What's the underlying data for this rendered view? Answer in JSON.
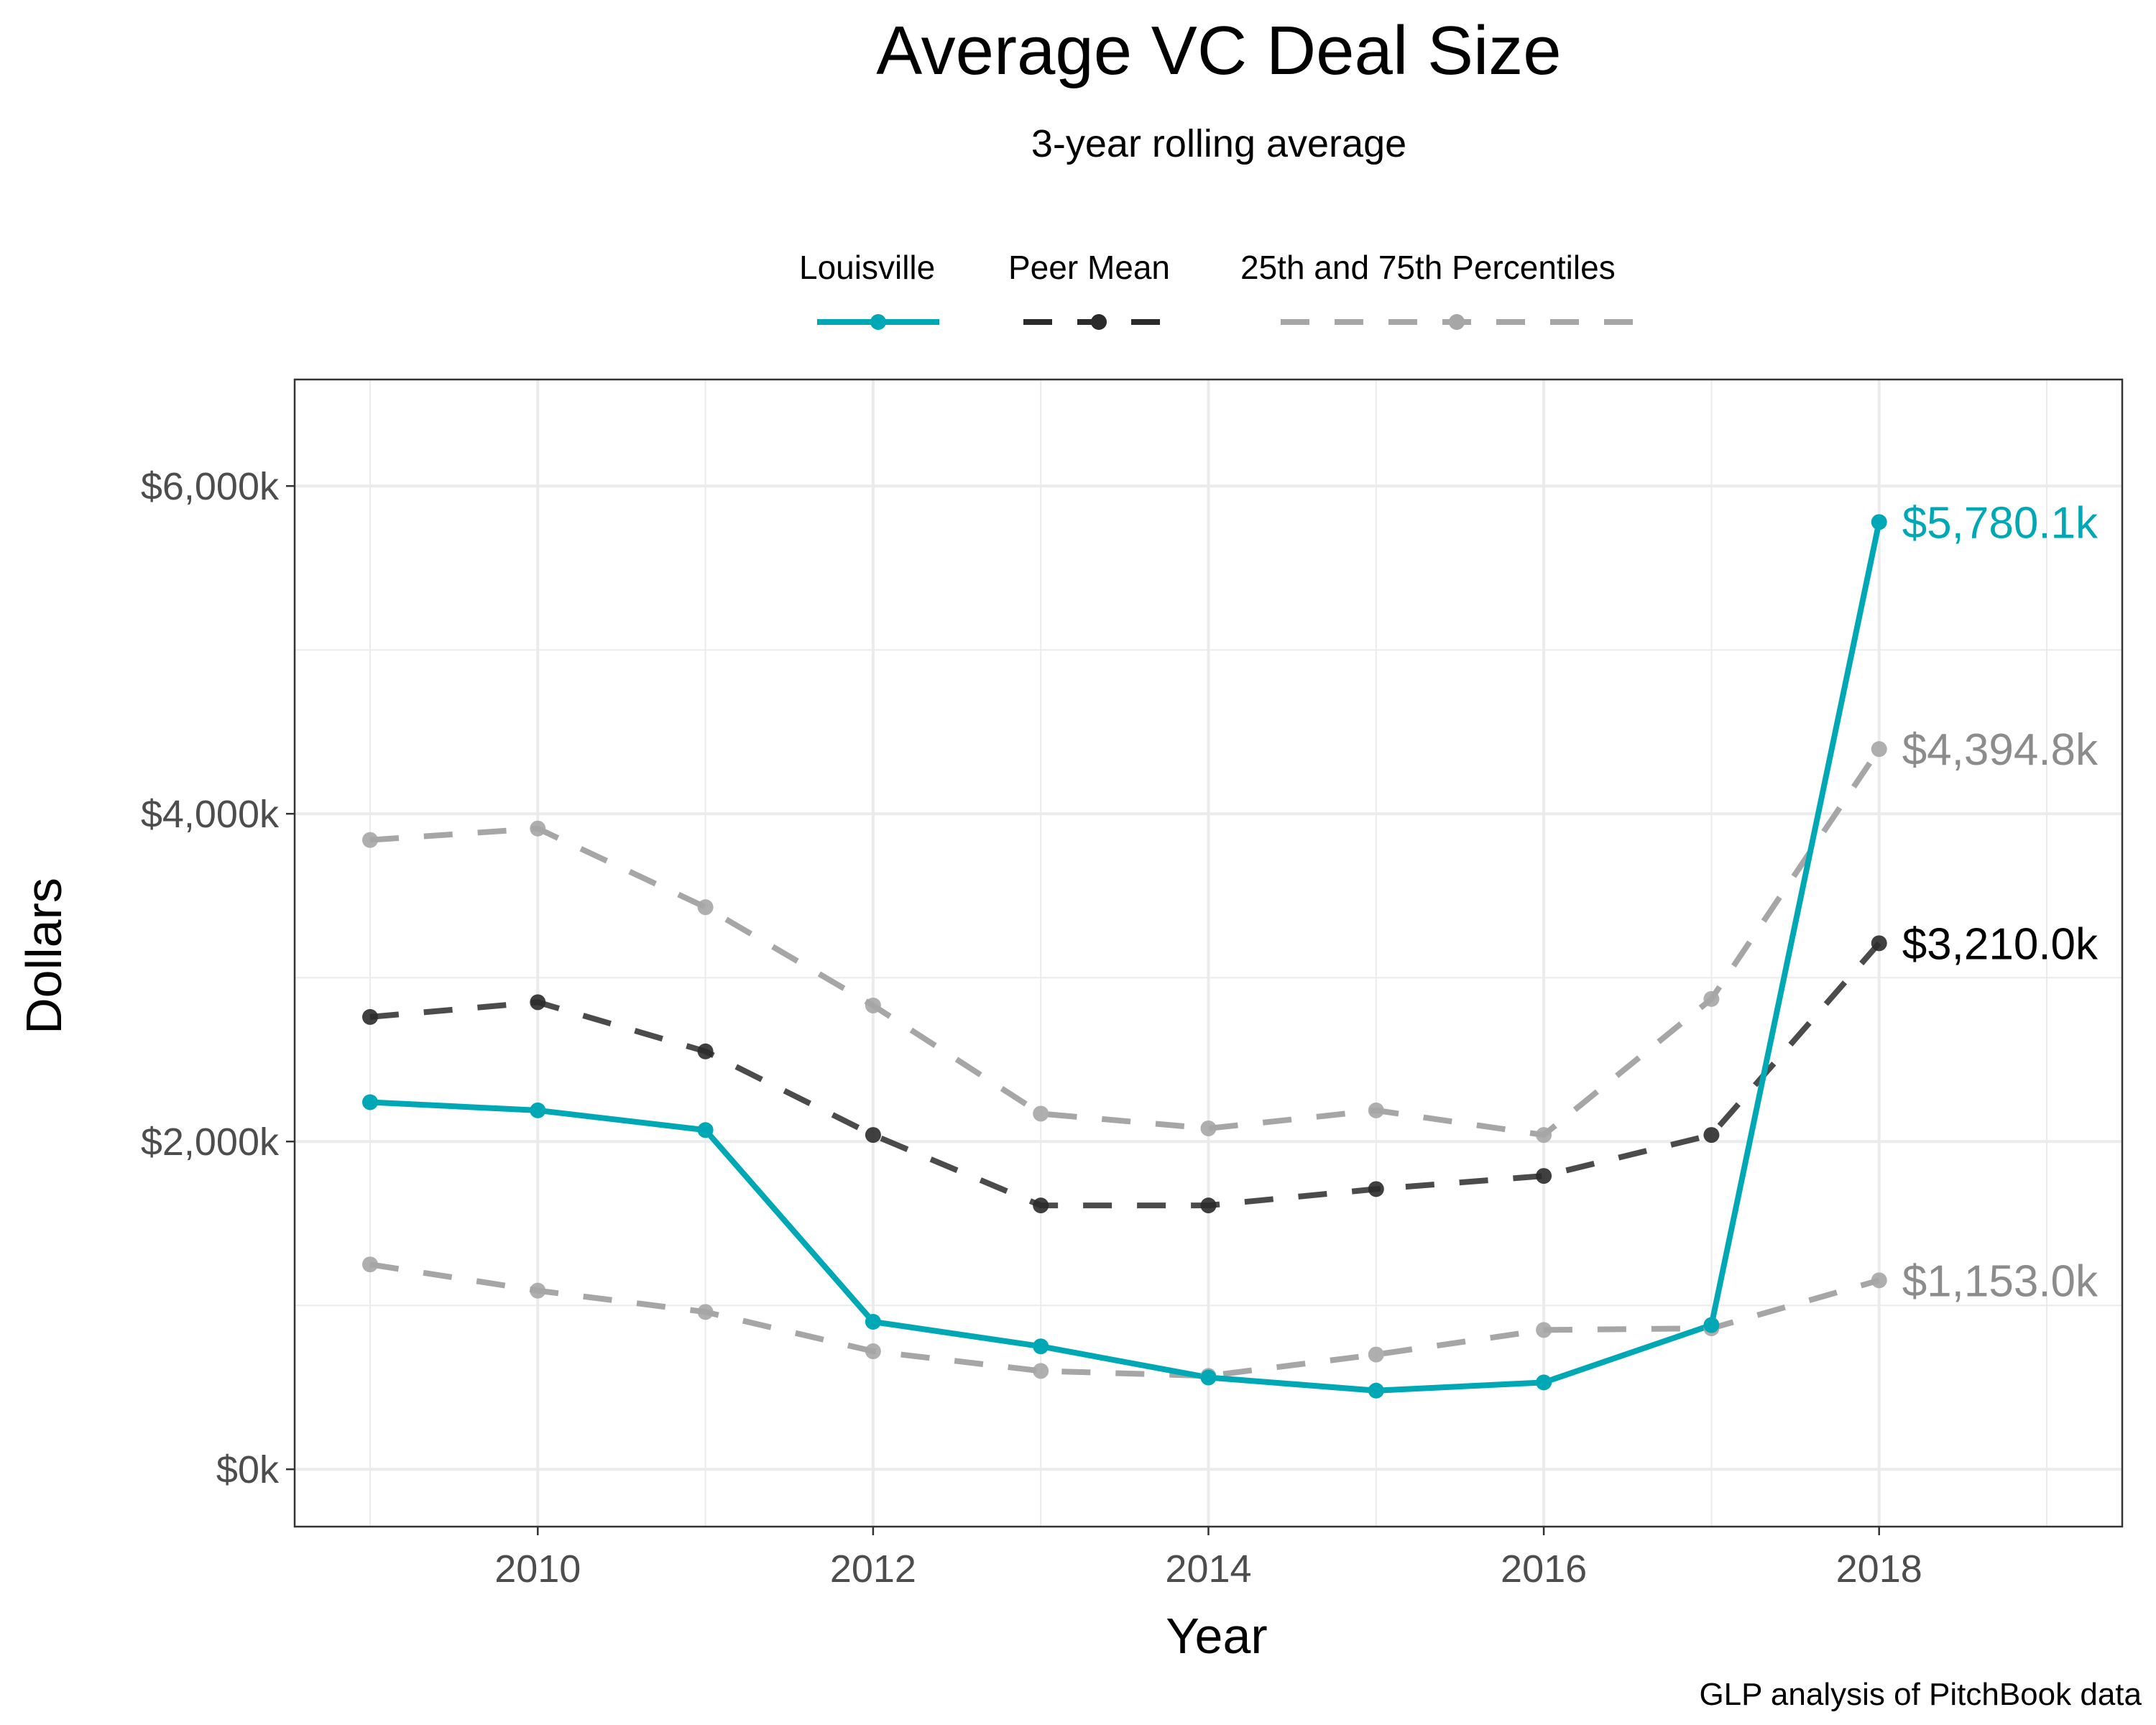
{
  "chart_data": {
    "type": "line",
    "title": "Average VC Deal Size",
    "subtitle": "3-year rolling average",
    "xlabel": "Year",
    "ylabel": "Dollars",
    "caption": "GLP analysis of PitchBook data",
    "x": [
      2009,
      2010,
      2011,
      2012,
      2013,
      2014,
      2015,
      2016,
      2017,
      2018
    ],
    "xlim": [
      2008.55,
      2019.45
    ],
    "ylim": [
      -350,
      6650
    ],
    "x_ticks": [
      2010,
      2012,
      2014,
      2016,
      2018
    ],
    "x_tick_labels": [
      "2010",
      "2012",
      "2014",
      "2016",
      "2018"
    ],
    "y_ticks": [
      0,
      2000,
      4000,
      6000
    ],
    "y_tick_labels": [
      "$0k",
      "$2,000k",
      "$4,000k",
      "$6,000k"
    ],
    "grid": true,
    "legend_position": "top",
    "legend": [
      "Louisville",
      "Peer Mean",
      "25th and 75th Percentiles"
    ],
    "series": [
      {
        "name": "Louisville",
        "color": "#00a8b5",
        "style": "solid",
        "values": [
          2240,
          2190,
          2070,
          900,
          750,
          560,
          480,
          530,
          880,
          5780.1
        ],
        "end_label": "$5,780.1k"
      },
      {
        "name": "Peer Mean",
        "color": "#2b2b2b",
        "style": "dashed",
        "values": [
          2760,
          2850,
          2550,
          2040,
          1610,
          1610,
          1710,
          1790,
          2040,
          3210.0
        ],
        "end_label": "$3,210.0k"
      },
      {
        "name": "25th Percentile",
        "color": "#a6a6a6",
        "style": "dashed",
        "values": [
          1250,
          1090,
          960,
          720,
          600,
          570,
          700,
          850,
          860,
          1153.0
        ],
        "end_label": "$1,153.0k",
        "label_color": "#8c8c8c"
      },
      {
        "name": "75th Percentile",
        "color": "#a6a6a6",
        "style": "dashed",
        "values": [
          3840,
          3910,
          3430,
          2830,
          2170,
          2080,
          2190,
          2040,
          2870,
          4394.8
        ],
        "end_label": "$4,394.8k",
        "label_color": "#8c8c8c"
      }
    ]
  }
}
